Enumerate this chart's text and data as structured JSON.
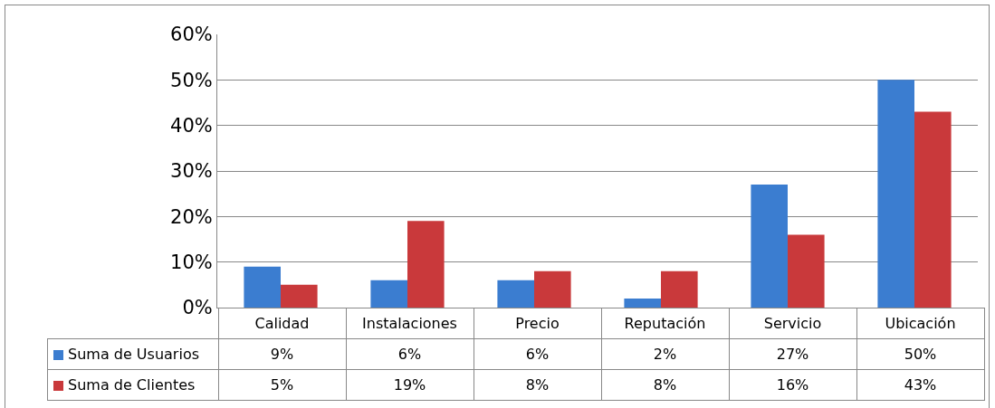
{
  "chart_data": {
    "type": "bar",
    "categories": [
      "Calidad",
      "Instalaciones",
      "Precio",
      "Reputación",
      "Servicio",
      "Ubicación"
    ],
    "series": [
      {
        "name": "Suma de Usuarios",
        "color": "#3b7dd0",
        "values": [
          9,
          6,
          6,
          2,
          27,
          50
        ],
        "value_labels": [
          "9%",
          "6%",
          "6%",
          "2%",
          "27%",
          "50%"
        ]
      },
      {
        "name": "Suma de Clientes",
        "color": "#c9393b",
        "values": [
          5,
          19,
          8,
          8,
          16,
          43
        ],
        "value_labels": [
          "5%",
          "19%",
          "8%",
          "8%",
          "16%",
          "43%"
        ]
      }
    ],
    "ylim": [
      0,
      60
    ],
    "yticks": [
      {
        "value": 0,
        "label": "0%"
      },
      {
        "value": 10,
        "label": "10%"
      },
      {
        "value": 20,
        "label": "20%"
      },
      {
        "value": 30,
        "label": "30%"
      },
      {
        "value": 40,
        "label": "40%"
      },
      {
        "value": 50,
        "label": "50%"
      },
      {
        "value": 60,
        "label": "60%"
      }
    ],
    "grid": "y",
    "legend": "bottom"
  }
}
